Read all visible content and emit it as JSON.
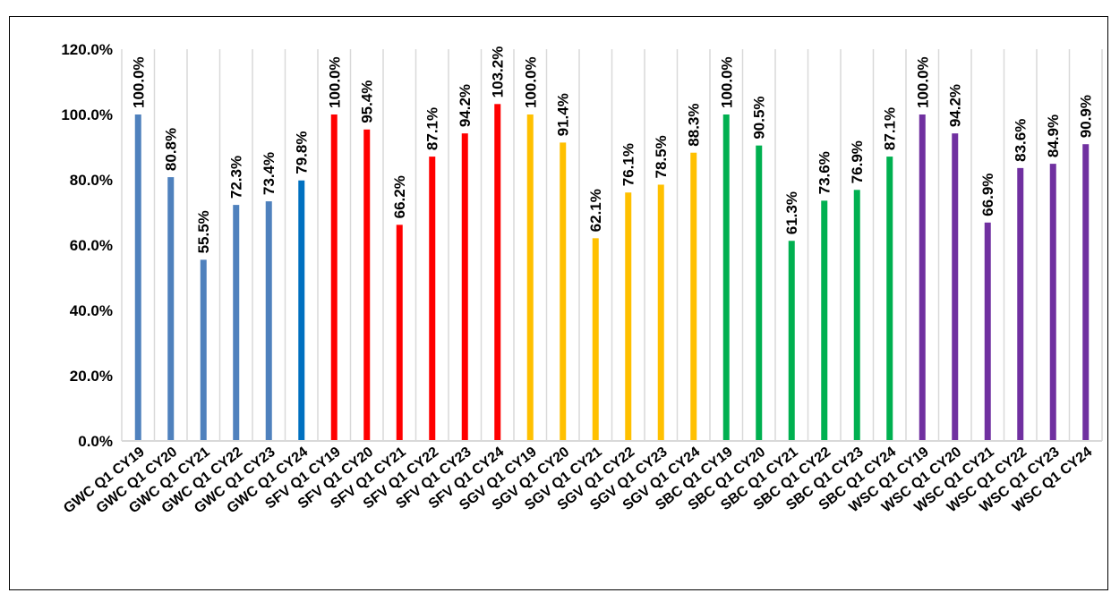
{
  "caption": "",
  "chart_data": {
    "type": "bar",
    "title": "",
    "xlabel": "",
    "ylabel": "",
    "ylim": [
      0,
      120
    ],
    "yticks": [
      "0.0%",
      "20.0%",
      "40.0%",
      "60.0%",
      "80.0%",
      "100.0%",
      "120.0%"
    ],
    "grid": "vertical",
    "legend": "none",
    "categories": [
      "GWC Q1 CY19",
      "GWC Q1 CY20",
      "GWC Q1 CY21",
      "GWC Q1 CY22",
      "GWC Q1 CY23",
      "GWC Q1 CY24",
      "SFV Q1 CY19",
      "SFV Q1 CY20",
      "SFV Q1 CY21",
      "SFV Q1 CY22",
      "SFV Q1 CY23",
      "SFV Q1 CY24",
      "SGV Q1 CY19",
      "SGV Q1 CY20",
      "SGV Q1 CY21",
      "SGV Q1 CY22",
      "SGV Q1 CY23",
      "SGV Q1 CY24",
      "SBC Q1 CY19",
      "SBC Q1 CY20",
      "SBC Q1 CY21",
      "SBC Q1 CY22",
      "SBC Q1 CY23",
      "SBC Q1 CY24",
      "WSC Q1 CY19",
      "WSC Q1 CY20",
      "WSC Q1 CY21",
      "WSC Q1 CY22",
      "WSC Q1 CY23",
      "WSC Q1 CY24"
    ],
    "values": [
      100.0,
      80.8,
      55.5,
      72.3,
      73.4,
      79.8,
      100.0,
      95.4,
      66.2,
      87.1,
      94.2,
      103.2,
      100.0,
      91.4,
      62.1,
      76.1,
      78.5,
      88.3,
      100.0,
      90.5,
      61.3,
      73.6,
      76.9,
      87.1,
      100.0,
      94.2,
      66.9,
      83.6,
      84.9,
      90.9
    ],
    "labels": [
      "100.0%",
      "80.8%",
      "55.5%",
      "72.3%",
      "73.4%",
      "79.8%",
      "100.0%",
      "95.4%",
      "66.2%",
      "87.1%",
      "94.2%",
      "103.2%",
      "100.0%",
      "91.4%",
      "62.1%",
      "76.1%",
      "78.5%",
      "88.3%",
      "100.0%",
      "90.5%",
      "61.3%",
      "73.6%",
      "76.9%",
      "87.1%",
      "100.0%",
      "94.2%",
      "66.9%",
      "83.6%",
      "84.9%",
      "90.9%"
    ],
    "colors": [
      "#4F81BD",
      "#4F81BD",
      "#4F81BD",
      "#4F81BD",
      "#4F81BD",
      "#0070C0",
      "#FF0000",
      "#FF0000",
      "#FF0000",
      "#FF0000",
      "#FF0000",
      "#FF0000",
      "#FFC000",
      "#FFC000",
      "#FFC000",
      "#FFC000",
      "#FFC000",
      "#FFC000",
      "#00B050",
      "#00B050",
      "#00B050",
      "#00B050",
      "#00B050",
      "#00B050",
      "#7030A0",
      "#7030A0",
      "#7030A0",
      "#7030A0",
      "#7030A0",
      "#7030A0"
    ]
  }
}
